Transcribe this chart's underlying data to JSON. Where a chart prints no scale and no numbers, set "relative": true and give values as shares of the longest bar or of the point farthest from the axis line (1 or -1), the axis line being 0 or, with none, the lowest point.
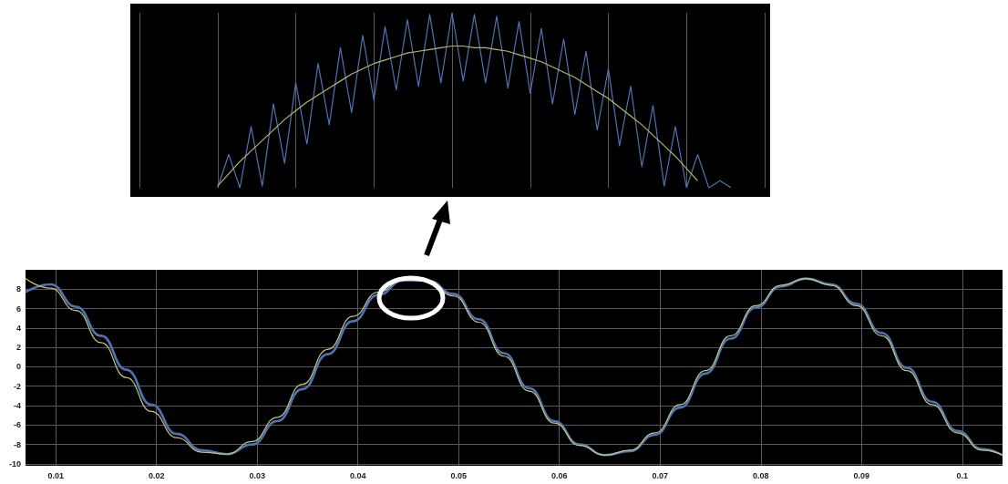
{
  "chart_data": [
    {
      "type": "line",
      "relative": true,
      "grid": "x",
      "categories": [
        null,
        null,
        null,
        null,
        null,
        null,
        null,
        null,
        null,
        null,
        null,
        null,
        null,
        null,
        null,
        null,
        null,
        null,
        null,
        null,
        null,
        null,
        null,
        null,
        null,
        null,
        null,
        null,
        null,
        null,
        null,
        null,
        null,
        null,
        null,
        null,
        null,
        null,
        null,
        null,
        null,
        null,
        null,
        null,
        null,
        null,
        null,
        null,
        null,
        null,
        null,
        null,
        null,
        null,
        null,
        null,
        null
      ],
      "series": [
        {
          "color": "#4f73b3",
          "values": [
            null,
            null,
            null,
            null,
            null,
            null,
            null,
            0,
            0.19,
            0,
            0.35,
            0.01,
            0.48,
            0.14,
            0.6,
            0.25,
            0.71,
            0.36,
            0.8,
            0.43,
            0.87,
            0.5,
            0.92,
            0.56,
            0.96,
            0.58,
            0.99,
            0.6,
            1.0,
            0.61,
            0.99,
            0.6,
            0.98,
            0.57,
            0.95,
            0.54,
            0.91,
            0.48,
            0.85,
            0.42,
            0.78,
            0.33,
            0.68,
            0.24,
            0.58,
            0.12,
            0.47,
            0.01,
            0.35,
            0,
            0.19,
            0,
            0.04,
            0,
            null,
            null,
            null
          ]
        },
        {
          "color": "#b5b56e",
          "values": [
            null,
            null,
            null,
            null,
            null,
            null,
            null,
            0.01,
            0.08,
            0.15,
            0.21,
            0.27,
            0.33,
            0.39,
            0.44,
            0.49,
            0.53,
            0.57,
            0.61,
            0.65,
            0.68,
            0.71,
            0.73,
            0.75,
            0.77,
            0.78,
            0.79,
            0.8,
            0.81,
            0.81,
            0.8,
            0.8,
            0.79,
            0.78,
            0.76,
            0.74,
            0.72,
            0.69,
            0.66,
            0.63,
            0.59,
            0.55,
            0.51,
            0.46,
            0.41,
            0.36,
            0.3,
            0.24,
            0.18,
            0.11,
            0.04,
            null,
            null,
            null,
            null,
            null,
            null
          ]
        }
      ]
    },
    {
      "type": "line",
      "grid": true,
      "xlim": [
        0.007,
        0.104
      ],
      "ylim": [
        -10.2,
        10
      ],
      "xticks": [
        0.01,
        0.02,
        0.03,
        0.04,
        0.05,
        0.06,
        0.07,
        0.08,
        0.09,
        0.1
      ],
      "yticks": [
        -10,
        -8,
        -6,
        -4,
        -2,
        0,
        2,
        4,
        6,
        8
      ],
      "x": [
        0.007,
        0.0095,
        0.012,
        0.0145,
        0.017,
        0.0195,
        0.022,
        0.0245,
        0.027,
        0.0295,
        0.032,
        0.0345,
        0.037,
        0.0395,
        0.042,
        0.0445,
        0.047,
        0.0495,
        0.052,
        0.0545,
        0.057,
        0.0595,
        0.062,
        0.0645,
        0.067,
        0.0695,
        0.072,
        0.0745,
        0.077,
        0.0795,
        0.082,
        0.0845,
        0.087,
        0.0895,
        0.092,
        0.0945,
        0.097,
        0.0995,
        0.102,
        0.104
      ],
      "series": [
        {
          "color": "#4f73b3",
          "values": [
            7.7,
            8.5,
            6.2,
            3.2,
            -0.3,
            -3.9,
            -6.9,
            -8.6,
            -9.0,
            -8.0,
            -5.6,
            -2.3,
            1.3,
            4.7,
            7.4,
            8.9,
            8.9,
            7.5,
            4.9,
            1.4,
            -2.2,
            -5.6,
            -8.0,
            -9.1,
            -8.7,
            -7.0,
            -4.2,
            -0.7,
            2.9,
            6.1,
            8.3,
            9.1,
            8.5,
            6.5,
            3.5,
            -0.1,
            -3.6,
            -6.6,
            -8.5,
            -9.1
          ]
        },
        {
          "color": "#c8c87a",
          "values": [
            9.1,
            8.1,
            5.8,
            2.5,
            -1.1,
            -4.6,
            -7.3,
            -8.8,
            -9.0,
            -7.7,
            -5.2,
            -1.8,
            1.8,
            5.2,
            7.7,
            9.0,
            8.8,
            7.3,
            4.6,
            1.1,
            -2.5,
            -5.8,
            -8.1,
            -9.1,
            -8.6,
            -6.8,
            -3.9,
            -0.4,
            3.2,
            6.3,
            8.4,
            9.1,
            8.4,
            6.3,
            3.2,
            -0.4,
            -3.9,
            -6.8,
            -8.6,
            -9.1
          ]
        }
      ]
    }
  ]
}
